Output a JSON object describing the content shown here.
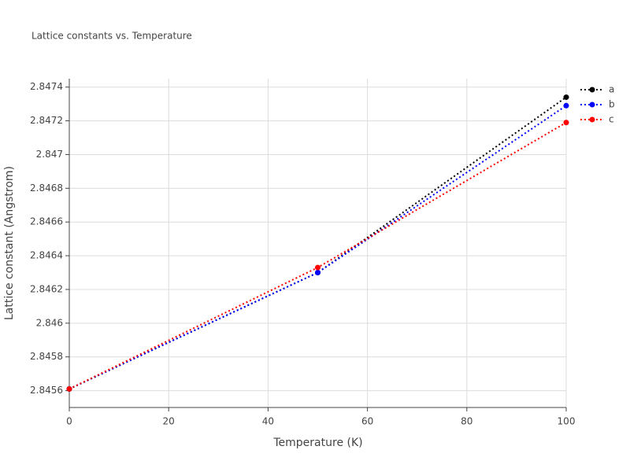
{
  "chart_data": {
    "type": "line",
    "title": "Lattice constants vs. Temperature",
    "x_label": "Temperature (K)",
    "y_label": "Lattice constant (Angstrom)",
    "x": [
      0,
      50,
      100
    ],
    "series": [
      {
        "name": "a",
        "color": "#000000",
        "values": [
          2.84561,
          2.8463,
          2.84734
        ]
      },
      {
        "name": "b",
        "color": "#0000ff",
        "values": [
          2.84561,
          2.8463,
          2.84729
        ]
      },
      {
        "name": "c",
        "color": "#ff0000",
        "values": [
          2.84561,
          2.84633,
          2.84719
        ]
      }
    ],
    "xlim": [
      0,
      100
    ],
    "xticks": [
      0,
      20,
      40,
      60,
      80,
      100
    ],
    "ylim": [
      2.8455,
      2.84745
    ],
    "yticks": [
      2.8456,
      2.8458,
      2.846,
      2.8462,
      2.8464,
      2.8466,
      2.8468,
      2.847,
      2.8472,
      2.8474
    ],
    "grid": true,
    "legend": "top-right"
  }
}
